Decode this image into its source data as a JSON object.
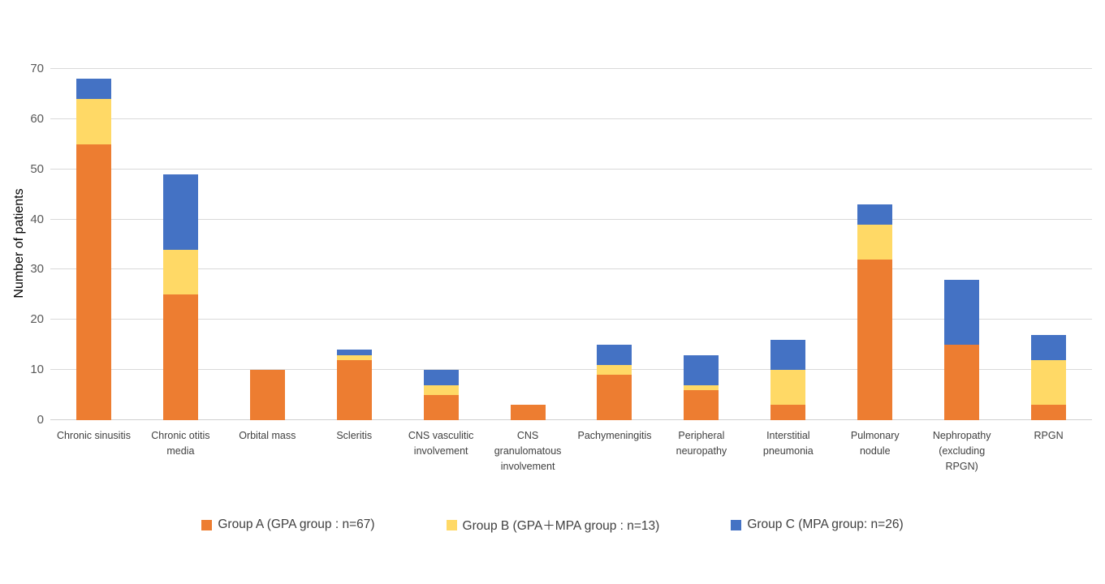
{
  "chart_data": {
    "type": "bar",
    "stacked": true,
    "ylabel": "Number of patients",
    "ylim": [
      0,
      70
    ],
    "ytick_interval": 10,
    "yticks": [
      0,
      10,
      20,
      30,
      40,
      50,
      60,
      70
    ],
    "grid": true,
    "legend_position": "bottom",
    "categories": [
      "Chronic sinusitis",
      "Chronic otitis media",
      "Orbital mass",
      "Scleritis",
      "CNS vasculitic involvement",
      "CNS granulomatous involvement",
      "Pachymeningitis",
      "Peripheral neuropathy",
      "Interstitial pneumonia",
      "Pulmonary nodule",
      "Nephropathy (excluding RPGN)",
      "RPGN"
    ],
    "series": [
      {
        "name": "Group A (GPA group : n=67)",
        "color": "#ED7D31",
        "values": [
          55,
          25,
          10,
          12,
          5,
          3,
          9,
          6,
          3,
          32,
          15,
          3
        ]
      },
      {
        "name": "Group B (GPA＋MPA group : n=13)",
        "color": "#FFD966",
        "values": [
          9,
          9,
          0,
          1,
          2,
          0,
          2,
          1,
          7,
          7,
          0,
          9
        ]
      },
      {
        "name": "Group C (MPA group: n=26)",
        "color": "#4472C4",
        "values": [
          4,
          15,
          0,
          1,
          3,
          0,
          4,
          6,
          6,
          4,
          13,
          5
        ]
      }
    ],
    "totals": [
      68,
      49,
      10,
      14,
      10,
      3,
      15,
      13,
      16,
      43,
      28,
      17
    ]
  },
  "style_colors": {
    "gridline": "#D9D9D9",
    "tick_text": "#595959",
    "category_text": "#404040",
    "legend_text": "#404040",
    "axis_title_text": "#000000",
    "background": "#FFFFFF"
  }
}
